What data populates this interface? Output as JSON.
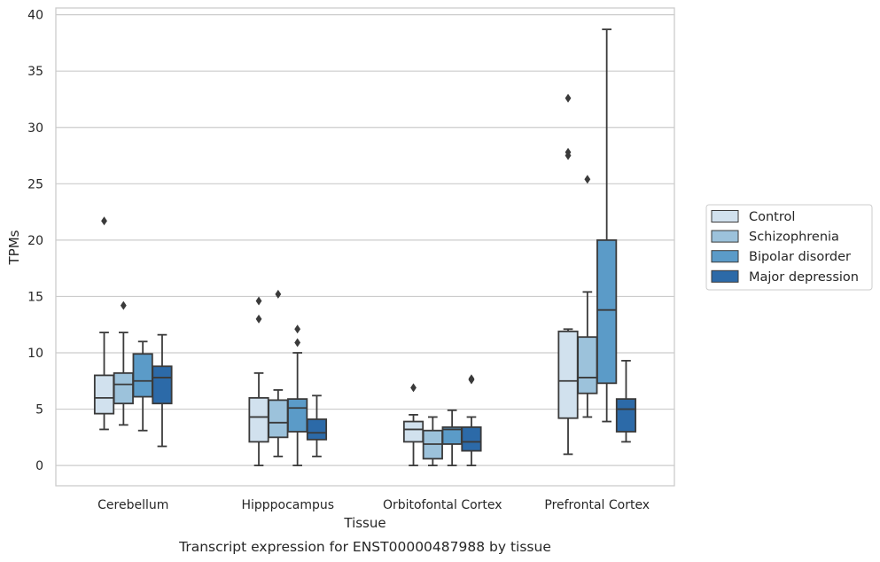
{
  "chart_data": {
    "type": "box",
    "title": "Transcript expression for ENST00000487988 by tissue",
    "xlabel": "Tissue",
    "ylabel": "TPMs",
    "ylim": [
      -1.8,
      40.6
    ],
    "yticks": [
      0,
      5,
      10,
      15,
      20,
      25,
      30,
      35,
      40
    ],
    "grid": "horizontal",
    "legend_position": "right",
    "categories": [
      "Cerebellum",
      "Hipppocampus",
      "Orbitofontal Cortex",
      "Prefrontal Cortex"
    ],
    "series": [
      {
        "name": "Control",
        "color": "#d1e1ee",
        "boxes": [
          {
            "whislo": 3.2,
            "q1": 4.6,
            "med": 6.0,
            "q3": 8.0,
            "whishi": 11.8,
            "fliers": [
              21.7
            ]
          },
          {
            "whislo": 0.0,
            "q1": 2.1,
            "med": 4.3,
            "q3": 6.0,
            "whishi": 8.2,
            "fliers": [
              13.0,
              14.6
            ]
          },
          {
            "whislo": 0.0,
            "q1": 2.1,
            "med": 3.2,
            "q3": 3.9,
            "whishi": 4.5,
            "fliers": [
              6.9
            ]
          },
          {
            "whislo": 1.0,
            "q1": 4.2,
            "med": 7.5,
            "q3": 11.9,
            "whishi": 12.1,
            "fliers": [
              27.5,
              27.8,
              32.6
            ]
          }
        ]
      },
      {
        "name": "Schizophrenia",
        "color": "#9cc2db",
        "boxes": [
          {
            "whislo": 3.6,
            "q1": 5.5,
            "med": 7.2,
            "q3": 8.2,
            "whishi": 11.8,
            "fliers": [
              14.2
            ]
          },
          {
            "whislo": 0.8,
            "q1": 2.5,
            "med": 3.8,
            "q3": 5.8,
            "whishi": 6.7,
            "fliers": [
              15.2
            ]
          },
          {
            "whislo": 0.0,
            "q1": 0.6,
            "med": 1.9,
            "q3": 3.1,
            "whishi": 4.3,
            "fliers": []
          },
          {
            "whislo": 4.3,
            "q1": 6.4,
            "med": 7.8,
            "q3": 11.4,
            "whishi": 15.4,
            "fliers": [
              25.4
            ]
          }
        ]
      },
      {
        "name": "Bipolar disorder",
        "color": "#5b9bc8",
        "boxes": [
          {
            "whislo": 3.1,
            "q1": 6.1,
            "med": 7.5,
            "q3": 9.9,
            "whishi": 11.0,
            "fliers": []
          },
          {
            "whislo": 0.0,
            "q1": 3.0,
            "med": 5.1,
            "q3": 5.9,
            "whishi": 10.0,
            "fliers": [
              10.9,
              12.1
            ]
          },
          {
            "whislo": 0.0,
            "q1": 1.9,
            "med": 3.2,
            "q3": 3.4,
            "whishi": 4.9,
            "fliers": []
          },
          {
            "whislo": 3.9,
            "q1": 7.3,
            "med": 13.8,
            "q3": 20.0,
            "whishi": 38.7,
            "fliers": []
          }
        ]
      },
      {
        "name": "Major depression",
        "color": "#2c6aa8",
        "boxes": [
          {
            "whislo": 1.7,
            "q1": 5.5,
            "med": 7.8,
            "q3": 8.8,
            "whishi": 11.6,
            "fliers": []
          },
          {
            "whislo": 0.8,
            "q1": 2.3,
            "med": 2.9,
            "q3": 4.1,
            "whishi": 6.2,
            "fliers": []
          },
          {
            "whislo": 0.0,
            "q1": 1.3,
            "med": 2.1,
            "q3": 3.4,
            "whishi": 4.3,
            "fliers": [
              7.6,
              7.7
            ]
          },
          {
            "whislo": 2.1,
            "q1": 3.0,
            "med": 5.0,
            "q3": 5.9,
            "whishi": 9.3,
            "fliers": []
          }
        ]
      }
    ]
  }
}
